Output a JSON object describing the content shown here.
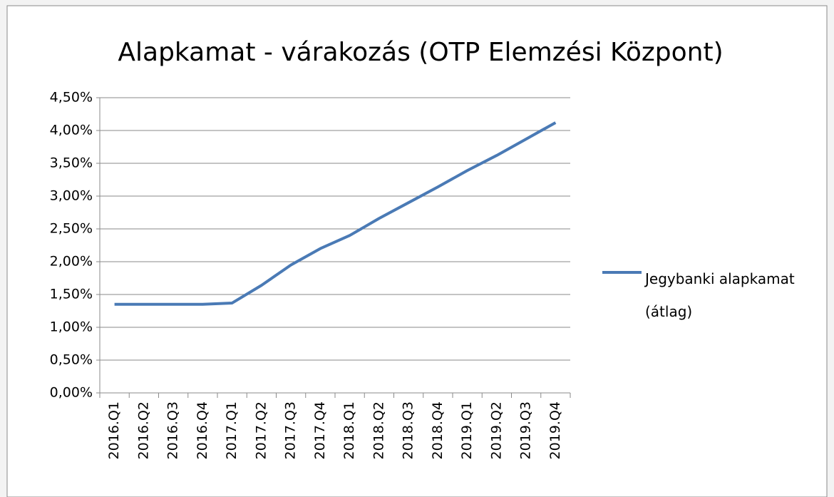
{
  "chart_data": {
    "type": "line",
    "title": "Alapkamat - várakozás (OTP Elemzési Központ)",
    "categories": [
      "2016.Q1",
      "2016.Q2",
      "2016.Q3",
      "2016.Q4",
      "2017.Q1",
      "2017.Q2",
      "2017.Q3",
      "2017.Q4",
      "2018.Q1",
      "2018.Q2",
      "2018.Q3",
      "2018.Q4",
      "2019.Q1",
      "2019.Q2",
      "2019.Q3",
      "2019.Q4"
    ],
    "series": [
      {
        "name": "Jegybanki alapkamat (átlag)",
        "color": "#4a7ab5",
        "values": [
          1.35,
          1.35,
          1.35,
          1.35,
          1.37,
          1.64,
          1.95,
          2.2,
          2.4,
          2.66,
          2.9,
          3.14,
          3.39,
          3.62,
          3.87,
          4.12
        ]
      }
    ],
    "ylim": [
      0,
      4.5
    ],
    "yticks": [
      {
        "value": 0,
        "label": "0,00%"
      },
      {
        "value": 0.5,
        "label": "0,50%"
      },
      {
        "value": 1,
        "label": "1,00%"
      },
      {
        "value": 1.5,
        "label": "1,50%"
      },
      {
        "value": 2,
        "label": "2,00%"
      },
      {
        "value": 2.5,
        "label": "2,50%"
      },
      {
        "value": 3,
        "label": "3,00%"
      },
      {
        "value": 3.5,
        "label": "3,50%"
      },
      {
        "value": 4,
        "label": "4,00%"
      },
      {
        "value": 4.5,
        "label": "4,50%"
      }
    ],
    "grid": true,
    "legend": "right"
  }
}
